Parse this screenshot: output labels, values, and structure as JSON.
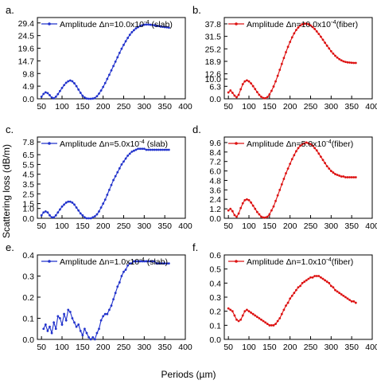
{
  "figure": {
    "ylabel": "Scattering loss (dB/m)",
    "xlabel": "Periods (µm)"
  },
  "chart_data": [
    {
      "type": "line",
      "panel": "a.",
      "color": "#2233cc",
      "legend_prefix": "Amplitude Δn=",
      "legend_base": "10.0x10",
      "legend_exp": "-4",
      "legend_suffix": " (slab)",
      "xlim": [
        40,
        400
      ],
      "xticks": [
        50,
        100,
        150,
        200,
        250,
        300,
        350,
        400
      ],
      "ylim": [
        0,
        31.5
      ],
      "yticks": [
        "0.0",
        "4.9",
        "9.8",
        "14.7",
        "19.6",
        "24.5",
        "29.4"
      ],
      "x": [
        50,
        55,
        60,
        65,
        70,
        75,
        80,
        85,
        90,
        95,
        100,
        105,
        110,
        115,
        120,
        125,
        130,
        135,
        140,
        145,
        150,
        155,
        160,
        165,
        170,
        175,
        180,
        185,
        190,
        195,
        200,
        205,
        210,
        215,
        220,
        225,
        230,
        235,
        240,
        245,
        250,
        255,
        260,
        265,
        270,
        275,
        280,
        285,
        290,
        295,
        300,
        305,
        310,
        315,
        320,
        325,
        330,
        335,
        340,
        345,
        350,
        355,
        360
      ],
      "y": [
        0.8,
        1.9,
        2.5,
        2.2,
        1.4,
        0.5,
        0.2,
        0.8,
        1.8,
        3.0,
        4.2,
        5.3,
        6.2,
        6.8,
        7.1,
        6.8,
        6.0,
        4.9,
        3.6,
        2.3,
        1.2,
        0.5,
        0.1,
        0.0,
        0.0,
        0.1,
        0.3,
        1.0,
        2.0,
        3.2,
        4.6,
        6.1,
        7.7,
        9.3,
        11.0,
        12.7,
        14.4,
        16.1,
        17.8,
        19.4,
        20.9,
        22.3,
        23.6,
        24.8,
        25.8,
        26.6,
        27.3,
        27.8,
        28.2,
        28.5,
        28.7,
        28.8,
        28.8,
        28.7,
        28.6,
        28.5,
        28.3,
        28.2,
        28.0,
        27.9,
        27.8,
        27.7,
        27.6
      ]
    },
    {
      "type": "line",
      "panel": "b.",
      "color": "#dd1111",
      "legend_prefix": "Amplitude Δn=",
      "legend_base": "10.0x10",
      "legend_exp": "-4",
      "legend_suffix": "(fiber)",
      "xlim": [
        40,
        400
      ],
      "xticks": [
        50,
        100,
        150,
        200,
        250,
        300,
        350,
        400
      ],
      "ylim": [
        0,
        41
      ],
      "yticks": [
        "0.0",
        "6.3",
        "10.0",
        "12.6",
        "18.9",
        "25.2",
        "31.5",
        "37.8"
      ],
      "x": [
        50,
        55,
        60,
        65,
        70,
        75,
        80,
        85,
        90,
        95,
        100,
        105,
        110,
        115,
        120,
        125,
        130,
        135,
        140,
        145,
        150,
        155,
        160,
        165,
        170,
        175,
        180,
        185,
        190,
        195,
        200,
        205,
        210,
        215,
        220,
        225,
        230,
        235,
        240,
        245,
        250,
        255,
        260,
        265,
        270,
        275,
        280,
        285,
        290,
        295,
        300,
        305,
        310,
        315,
        320,
        325,
        330,
        335,
        340,
        345,
        350,
        355,
        360
      ],
      "y": [
        3.2,
        4.2,
        3.0,
        1.6,
        0.8,
        2.0,
        4.8,
        7.4,
        8.8,
        9.3,
        8.8,
        7.8,
        6.4,
        4.9,
        3.4,
        2.0,
        1.0,
        0.4,
        0.3,
        0.9,
        2.2,
        4.0,
        6.2,
        8.8,
        11.6,
        14.6,
        17.6,
        20.6,
        23.5,
        26.2,
        28.7,
        31.0,
        33.0,
        34.7,
        36.0,
        37.0,
        37.6,
        37.9,
        37.9,
        37.6,
        37.0,
        36.2,
        35.2,
        34.0,
        32.7,
        31.3,
        29.8,
        28.3,
        26.8,
        25.4,
        24.0,
        22.8,
        21.7,
        20.8,
        20.0,
        19.4,
        18.9,
        18.6,
        18.4,
        18.3,
        18.2,
        18.1,
        18.1
      ]
    },
    {
      "type": "line",
      "panel": "c.",
      "color": "#2233cc",
      "legend_prefix": "Amplitude Δn=",
      "legend_base": "5.0x10",
      "legend_exp": "-4",
      "legend_suffix": " (slab)",
      "xlim": [
        40,
        400
      ],
      "xticks": [
        50,
        100,
        150,
        200,
        250,
        300,
        350,
        400
      ],
      "ylim": [
        0,
        8.3
      ],
      "yticks": [
        "0.0",
        "1.0",
        "1.5",
        "2.5",
        "3.5",
        "4.5",
        "5.5",
        "6.5",
        "7.8"
      ],
      "x": [
        50,
        55,
        60,
        65,
        70,
        75,
        80,
        85,
        90,
        95,
        100,
        105,
        110,
        115,
        120,
        125,
        130,
        135,
        140,
        145,
        150,
        155,
        160,
        165,
        170,
        175,
        180,
        185,
        190,
        195,
        200,
        205,
        210,
        215,
        220,
        225,
        230,
        235,
        240,
        245,
        250,
        255,
        260,
        265,
        270,
        275,
        280,
        285,
        290,
        295,
        300,
        305,
        310,
        315,
        320,
        325,
        330,
        335,
        340,
        345,
        350,
        355,
        360
      ],
      "y": [
        0.3,
        0.6,
        0.7,
        0.6,
        0.3,
        0.1,
        0.1,
        0.3,
        0.6,
        0.9,
        1.2,
        1.4,
        1.6,
        1.7,
        1.7,
        1.6,
        1.4,
        1.1,
        0.8,
        0.5,
        0.3,
        0.1,
        0.0,
        0.0,
        0.0,
        0.1,
        0.2,
        0.4,
        0.7,
        1.1,
        1.5,
        1.9,
        2.4,
        2.9,
        3.4,
        3.9,
        4.3,
        4.7,
        5.1,
        5.5,
        5.8,
        6.1,
        6.4,
        6.6,
        6.8,
        6.9,
        7.0,
        7.1,
        7.1,
        7.1,
        7.1,
        7.0,
        7.0,
        7.0,
        7.0,
        7.0,
        7.0,
        7.0,
        7.0,
        7.0,
        7.0,
        7.0,
        7.0
      ]
    },
    {
      "type": "line",
      "panel": "d.",
      "color": "#dd1111",
      "legend_prefix": "Amplitude Δn=",
      "legend_base": "5.0x10",
      "legend_exp": "-4",
      "legend_suffix": "(fiber)",
      "xlim": [
        40,
        400
      ],
      "xticks": [
        50,
        100,
        150,
        200,
        250,
        300,
        350,
        400
      ],
      "ylim": [
        0,
        10.3
      ],
      "yticks": [
        "0.0",
        "1.2",
        "2.4",
        "3.6",
        "4.8",
        "6.0",
        "7.2",
        "8.4",
        "9.6"
      ],
      "x": [
        50,
        55,
        60,
        65,
        70,
        75,
        80,
        85,
        90,
        95,
        100,
        105,
        110,
        115,
        120,
        125,
        130,
        135,
        140,
        145,
        150,
        155,
        160,
        165,
        170,
        175,
        180,
        185,
        190,
        195,
        200,
        205,
        210,
        215,
        220,
        225,
        230,
        235,
        240,
        245,
        250,
        255,
        260,
        265,
        270,
        275,
        280,
        285,
        290,
        295,
        300,
        305,
        310,
        315,
        320,
        325,
        330,
        335,
        340,
        345,
        350,
        355,
        360
      ],
      "y": [
        1.0,
        1.2,
        0.9,
        0.4,
        0.2,
        0.6,
        1.3,
        1.9,
        2.3,
        2.4,
        2.3,
        2.0,
        1.6,
        1.2,
        0.8,
        0.5,
        0.2,
        0.1,
        0.1,
        0.2,
        0.5,
        1.0,
        1.5,
        2.2,
        2.9,
        3.6,
        4.3,
        5.0,
        5.7,
        6.3,
        6.9,
        7.5,
        8.0,
        8.5,
        8.9,
        9.2,
        9.4,
        9.5,
        9.6,
        9.5,
        9.4,
        9.2,
        8.9,
        8.6,
        8.2,
        7.8,
        7.4,
        7.0,
        6.6,
        6.3,
        6.0,
        5.8,
        5.6,
        5.5,
        5.4,
        5.3,
        5.3,
        5.2,
        5.2,
        5.2,
        5.2,
        5.2,
        5.2
      ]
    },
    {
      "type": "line",
      "panel": "e.",
      "color": "#2233cc",
      "legend_prefix": "Amplitude Δn=",
      "legend_base": "1.0x10",
      "legend_exp": "-4",
      "legend_suffix": " (slab)",
      "xlim": [
        40,
        400
      ],
      "xticks": [
        50,
        100,
        150,
        200,
        250,
        300,
        350,
        400
      ],
      "ylim": [
        0,
        0.4
      ],
      "yticks": [
        "0.0",
        "0.1",
        "0.2",
        "0.3",
        "0.4"
      ],
      "x": [
        55,
        60,
        65,
        70,
        75,
        80,
        85,
        90,
        95,
        100,
        105,
        110,
        115,
        120,
        125,
        130,
        135,
        140,
        145,
        150,
        155,
        160,
        165,
        170,
        175,
        180,
        185,
        190,
        195,
        200,
        205,
        210,
        215,
        220,
        225,
        230,
        235,
        240,
        245,
        250,
        255,
        260,
        265,
        270,
        275,
        280,
        285,
        290,
        295,
        300,
        305,
        310,
        315,
        320,
        325,
        330,
        335,
        340,
        345,
        350,
        355,
        360
      ],
      "y": [
        0.05,
        0.07,
        0.04,
        0.06,
        0.03,
        0.08,
        0.05,
        0.11,
        0.1,
        0.07,
        0.12,
        0.09,
        0.14,
        0.13,
        0.1,
        0.08,
        0.06,
        0.07,
        0.04,
        0.02,
        0.05,
        0.03,
        0.01,
        0.0,
        0.01,
        0.0,
        0.03,
        0.05,
        0.09,
        0.11,
        0.12,
        0.12,
        0.14,
        0.16,
        0.19,
        0.22,
        0.25,
        0.27,
        0.3,
        0.32,
        0.33,
        0.35,
        0.36,
        0.36,
        0.37,
        0.37,
        0.37,
        0.37,
        0.37,
        0.37,
        0.37,
        0.37,
        0.37,
        0.37,
        0.37,
        0.36,
        0.36,
        0.36,
        0.36,
        0.36,
        0.36,
        0.36
      ]
    },
    {
      "type": "line",
      "panel": "f.",
      "color": "#dd1111",
      "legend_prefix": "Amplitude Δn=",
      "legend_base": "1.0x10",
      "legend_exp": "-4",
      "legend_suffix": "(fiber)",
      "xlim": [
        40,
        400
      ],
      "xticks": [
        50,
        100,
        150,
        200,
        250,
        300,
        350,
        400
      ],
      "ylim": [
        0,
        0.6
      ],
      "yticks": [
        "0.0",
        "0.1",
        "0.2",
        "0.3",
        "0.4",
        "0.5",
        "0.6"
      ],
      "x": [
        50,
        55,
        60,
        65,
        70,
        75,
        80,
        85,
        90,
        95,
        100,
        105,
        110,
        115,
        120,
        125,
        130,
        135,
        140,
        145,
        150,
        155,
        160,
        165,
        170,
        175,
        180,
        185,
        190,
        195,
        200,
        205,
        210,
        215,
        220,
        225,
        230,
        235,
        240,
        245,
        250,
        255,
        260,
        265,
        270,
        275,
        280,
        285,
        290,
        295,
        300,
        305,
        310,
        315,
        320,
        325,
        330,
        335,
        340,
        345,
        350,
        355,
        360
      ],
      "y": [
        0.22,
        0.21,
        0.2,
        0.17,
        0.14,
        0.13,
        0.14,
        0.17,
        0.2,
        0.21,
        0.2,
        0.19,
        0.18,
        0.17,
        0.16,
        0.15,
        0.14,
        0.13,
        0.12,
        0.11,
        0.1,
        0.1,
        0.1,
        0.11,
        0.13,
        0.15,
        0.18,
        0.21,
        0.24,
        0.26,
        0.29,
        0.31,
        0.33,
        0.35,
        0.37,
        0.38,
        0.4,
        0.41,
        0.42,
        0.43,
        0.44,
        0.44,
        0.45,
        0.45,
        0.45,
        0.44,
        0.43,
        0.42,
        0.41,
        0.4,
        0.38,
        0.37,
        0.35,
        0.34,
        0.33,
        0.32,
        0.31,
        0.3,
        0.29,
        0.28,
        0.27,
        0.27,
        0.26
      ]
    }
  ]
}
